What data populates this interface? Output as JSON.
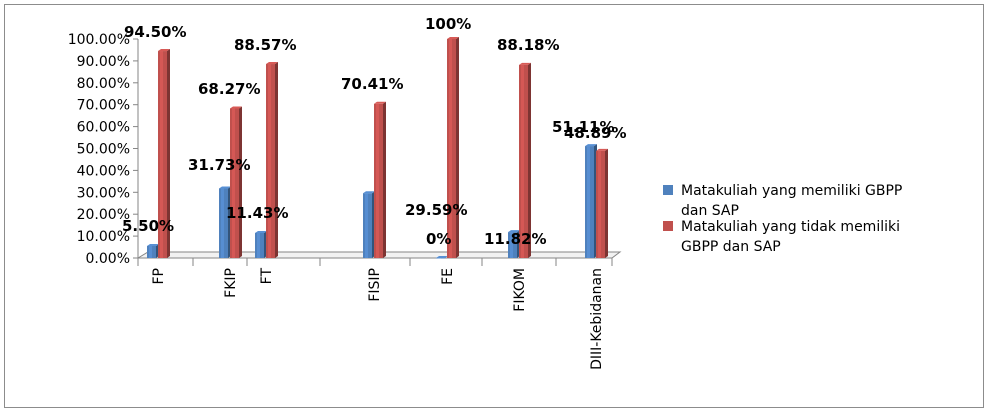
{
  "chart_data": {
    "type": "bar",
    "style": "3d-clustered-column",
    "categories": [
      "FP",
      "FKIP",
      "FT",
      "FISIP",
      "FE",
      "FIKOM",
      "DIII-Kebidanan"
    ],
    "series": [
      {
        "name": "Matakuliah yang memiliki GBPP dan SAP",
        "color": "#4f81bd",
        "values": [
          5.5,
          31.73,
          11.43,
          29.59,
          0,
          11.82,
          51.11
        ],
        "data_labels": [
          "5.50%",
          "31.73%",
          "11.43%",
          "29.59%",
          "0%",
          "11.82%",
          "51.11%"
        ]
      },
      {
        "name": "Matakuliah yang tidak memiliki GBPP dan SAP",
        "color": "#c0504d",
        "values": [
          94.5,
          68.27,
          88.57,
          70.41,
          100,
          88.18,
          48.89
        ],
        "data_labels": [
          "94.50%",
          "68.27%",
          "88.57%",
          "70.41%",
          "100%",
          "88.18%",
          "48.89%"
        ]
      }
    ],
    "y_ticks": [
      "0.00%",
      "10.00%",
      "20.00%",
      "30.00%",
      "40.00%",
      "50.00%",
      "60.00%",
      "70.00%",
      "80.00%",
      "90.00%",
      "100.00%"
    ],
    "ylim": [
      0,
      100
    ],
    "grid": false,
    "legend_position": "right",
    "legend": [
      {
        "lines": [
          "Matakuliah yang memiliki GBPP",
          "dan SAP"
        ],
        "color": "#4f81bd"
      },
      {
        "lines": [
          "Matakuliah yang tidak memiliki",
          "GBPP dan SAP"
        ],
        "color": "#c0504d"
      }
    ]
  }
}
